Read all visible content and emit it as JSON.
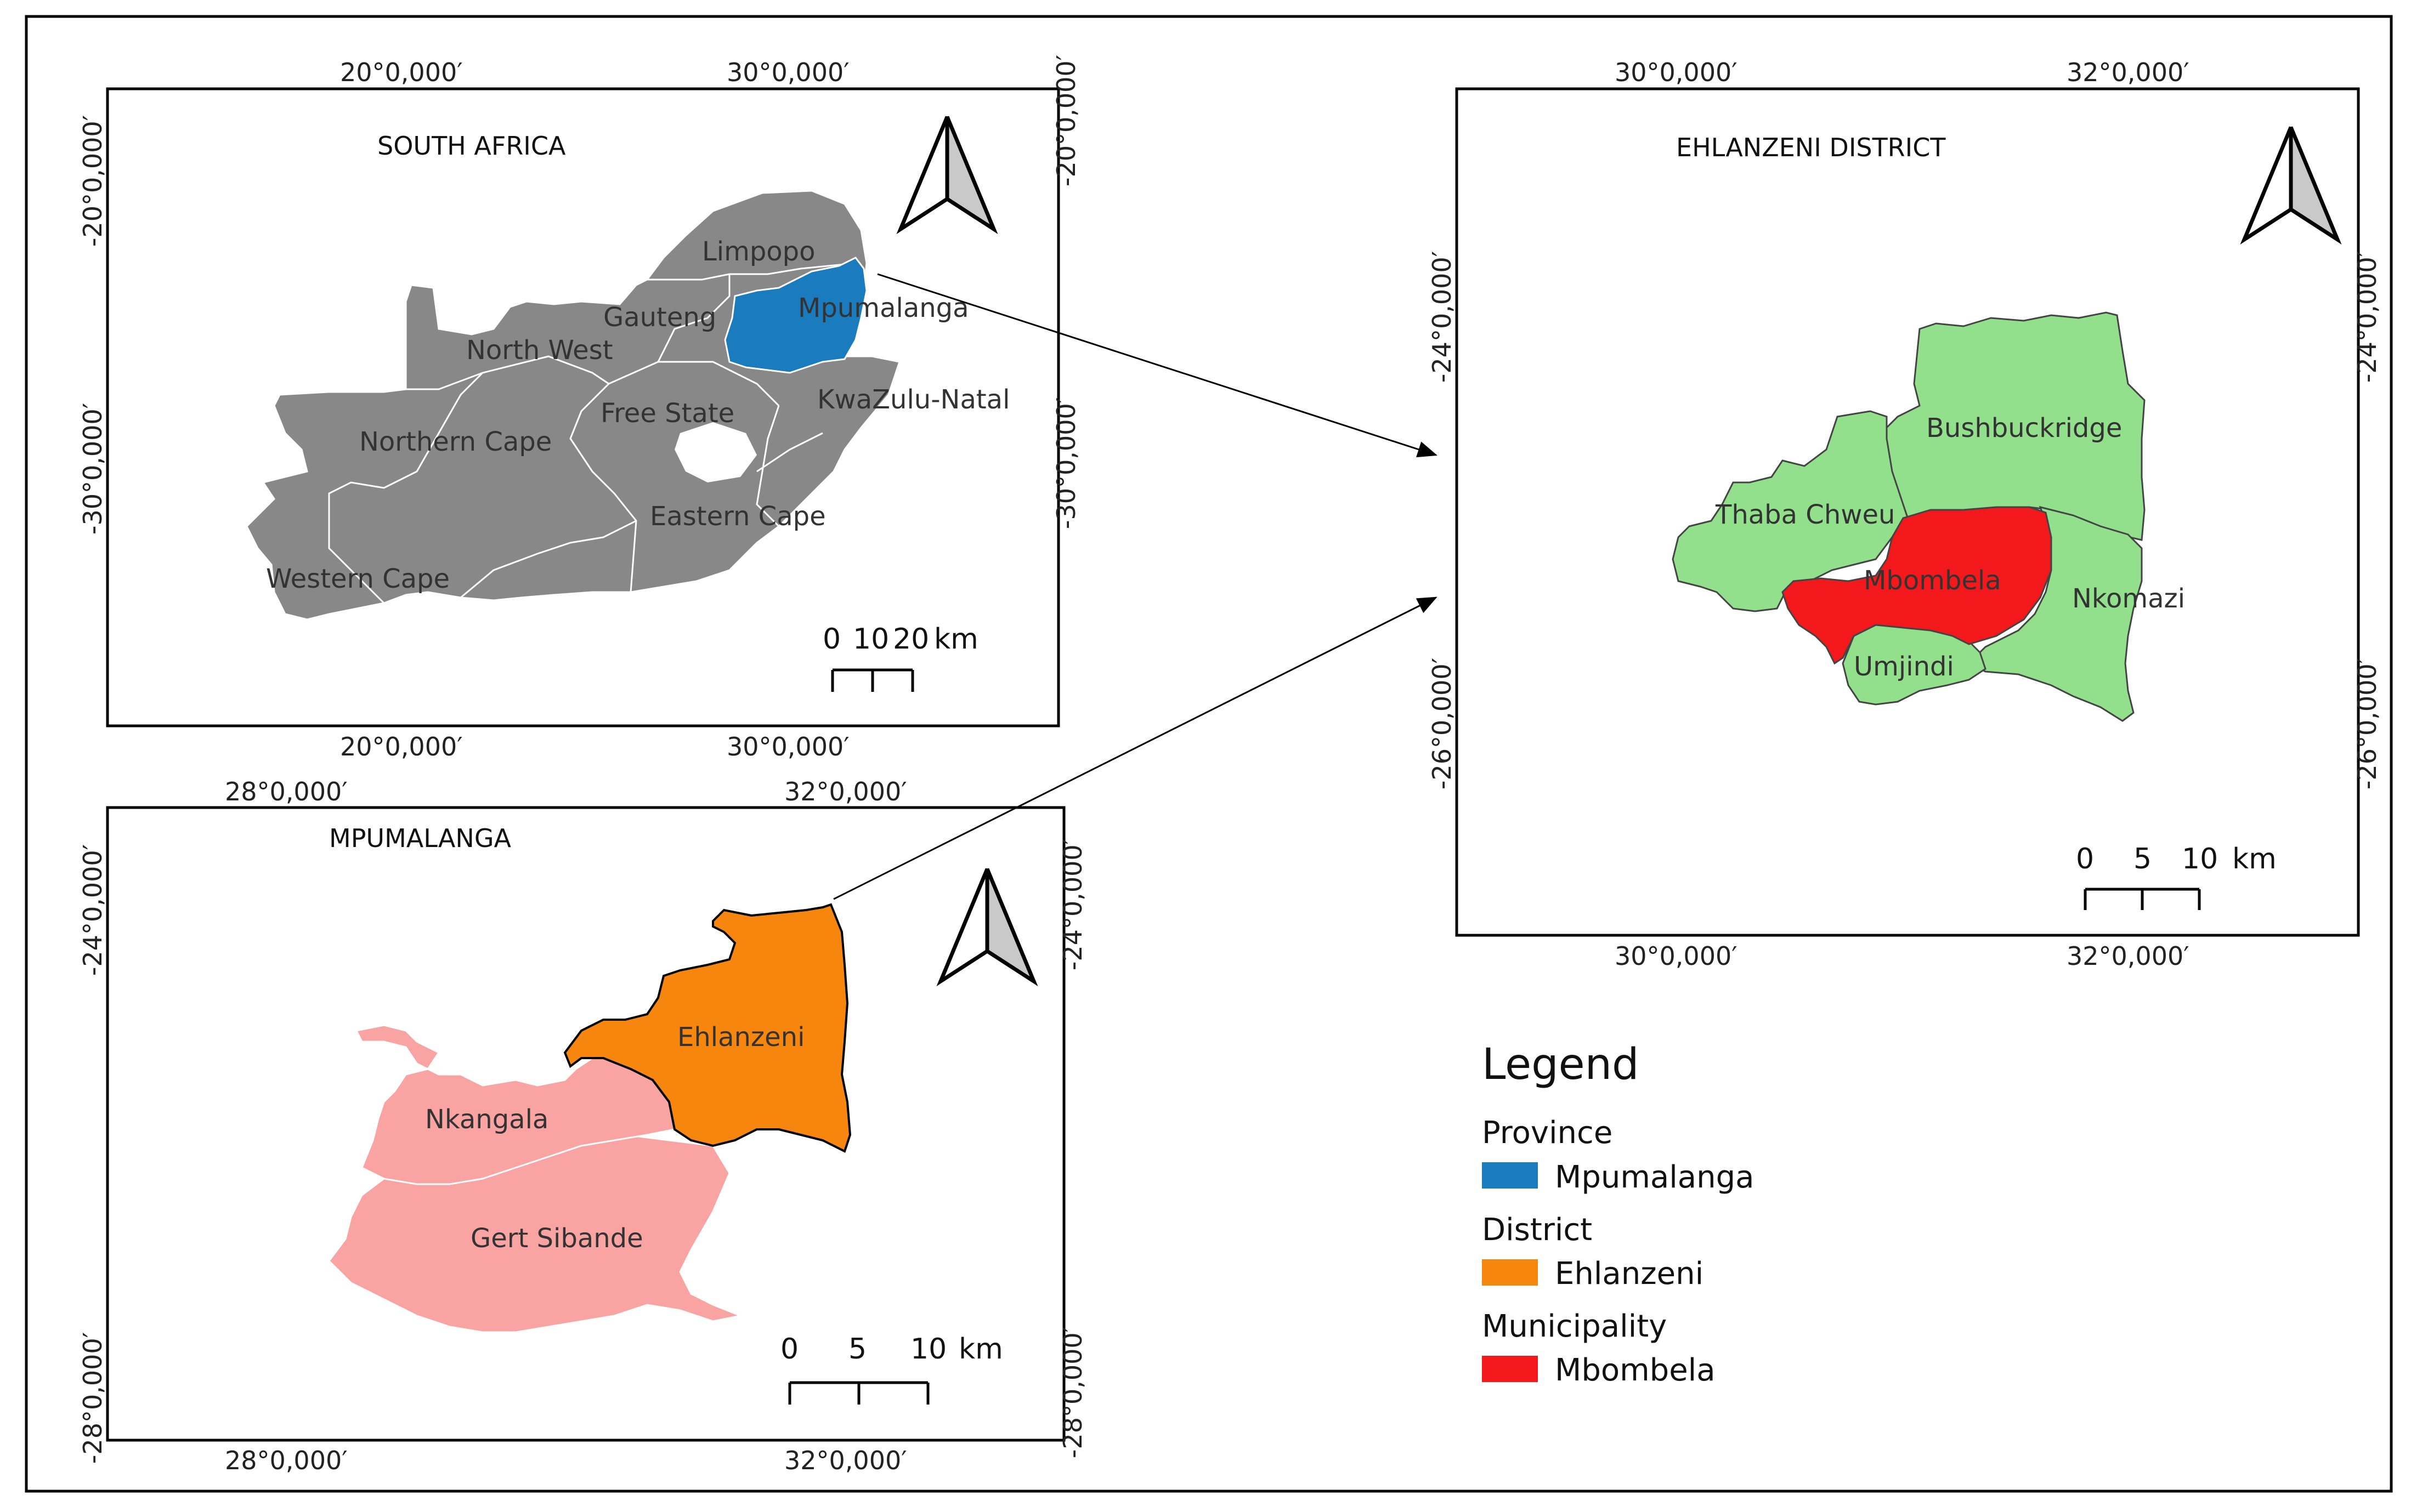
{
  "panels": {
    "south_africa": {
      "title": "SOUTH AFRICA",
      "coords": {
        "top": [
          "20°0,000′",
          "30°0,000′"
        ],
        "bottom": [
          "20°0,000′",
          "30°0,000′"
        ],
        "left": [
          "-20°0,000′",
          "-30°0,000′"
        ],
        "right": [
          "-20°0,000′",
          "-30°0,000′"
        ]
      },
      "provinces": [
        "Limpopo",
        "Mpumalanga",
        "Gauteng",
        "North West",
        "Free State",
        "KwaZulu-Natal",
        "Northern Cape",
        "Eastern Cape",
        "Western Cape"
      ],
      "scale": {
        "ticks": [
          "0",
          "10",
          "20"
        ],
        "unit": "km"
      }
    },
    "mpumalanga": {
      "title": "MPUMALANGA",
      "coords": {
        "top": [
          "28°0,000′",
          "32°0,000′"
        ],
        "bottom": [
          "28°0,000′",
          "32°0,000′"
        ],
        "left": [
          "-24°0,000′",
          "-28°0,000′"
        ],
        "right": [
          "-24°0,000′",
          "-28°0,000′"
        ]
      },
      "districts": [
        "Ehlanzeni",
        "Nkangala",
        "Gert Sibande"
      ],
      "scale": {
        "ticks": [
          "0",
          "5",
          "10"
        ],
        "unit": "km"
      }
    },
    "ehlanzeni": {
      "title": "EHLANZENI DISTRICT",
      "coords": {
        "top": [
          "30°0,000′",
          "32°0,000′"
        ],
        "bottom": [
          "30°0,000′",
          "32°0,000′"
        ],
        "left": [
          "-24°0,000′",
          "-26°0,000′"
        ],
        "right": [
          "-24°0,000′",
          "-26°0,000′"
        ]
      },
      "municipalities": [
        "Bushbuckridge",
        "Thaba Chweu",
        "Mbombela",
        "Nkomazi",
        "Umjindi"
      ],
      "scale": {
        "ticks": [
          "0",
          "5",
          "10"
        ],
        "unit": "km"
      }
    }
  },
  "legend": {
    "title": "Legend",
    "groups": [
      {
        "name": "Province",
        "item": "Mpumalanga",
        "color": "#1a7bbf"
      },
      {
        "name": "District",
        "item": "Ehlanzeni",
        "color": "#f7860f"
      },
      {
        "name": "Municipality",
        "item": "Mbombela",
        "color": "#f2181c"
      }
    ]
  },
  "colors": {
    "country": "#888888",
    "highlight_province": "#1a7bbf",
    "highlight_district": "#f7860f",
    "other_districts": "#f9a3a3",
    "municipalities": "#92e08c",
    "highlight_municipality": "#f2181c"
  },
  "icons": [
    "north-arrow-icon"
  ]
}
